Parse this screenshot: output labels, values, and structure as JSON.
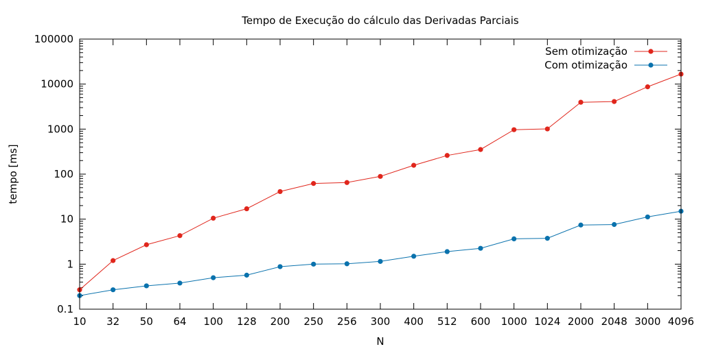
{
  "chart_data": {
    "type": "line",
    "title": "Tempo de Execução do cálculo das Derivadas Parciais",
    "xlabel": "N",
    "ylabel": "tempo [ms]",
    "categories": [
      "10",
      "32",
      "50",
      "64",
      "100",
      "128",
      "200",
      "250",
      "256",
      "300",
      "400",
      "512",
      "600",
      "1000",
      "1024",
      "2000",
      "2048",
      "3000",
      "4096"
    ],
    "y_scale": "log",
    "ylim": [
      0.1,
      100000
    ],
    "y_ticks": [
      0.1,
      1,
      10,
      100,
      1000,
      10000,
      100000
    ],
    "y_tick_labels": [
      "0.1",
      "1",
      "10",
      "100",
      "1000",
      "10000",
      "100000"
    ],
    "grid": false,
    "legend_position": "top-right",
    "series": [
      {
        "name": "Sem otimização",
        "color": "#e0261c",
        "values": [
          0.27,
          1.2,
          2.7,
          4.3,
          10.5,
          17,
          41,
          62,
          65,
          89,
          157,
          260,
          352,
          970,
          1010,
          3950,
          4100,
          8700,
          16700
        ]
      },
      {
        "name": "Com otimização",
        "color": "#0a72ad",
        "values": [
          0.2,
          0.27,
          0.33,
          0.38,
          0.5,
          0.57,
          0.88,
          1.0,
          1.02,
          1.15,
          1.5,
          1.9,
          2.25,
          3.65,
          3.75,
          7.4,
          7.6,
          11.2,
          15.0
        ]
      }
    ]
  }
}
